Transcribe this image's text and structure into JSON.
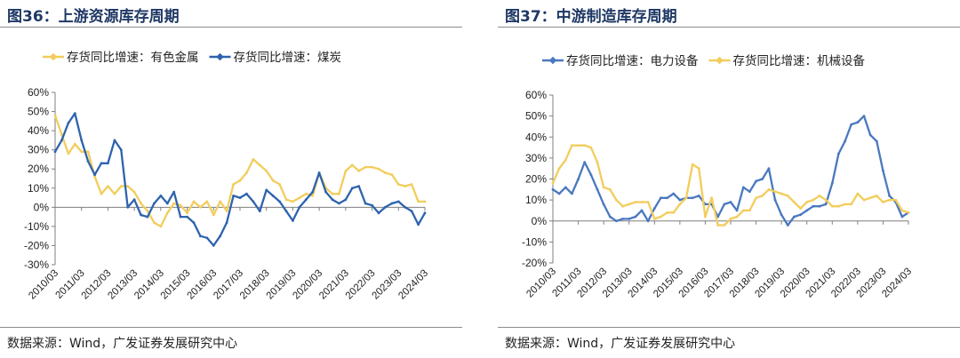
{
  "charts": [
    {
      "title": "图36：上游资源库存周期",
      "source": "数据来源：Wind，广发证券发展研究中心",
      "chart_data": {
        "type": "line",
        "ylim": [
          -30,
          60
        ],
        "yticks": [
          -30,
          -20,
          -10,
          0,
          10,
          20,
          30,
          40,
          50,
          60
        ],
        "ytick_labels": [
          "-30%",
          "-20%",
          "-10%",
          "0%",
          "10%",
          "20%",
          "30%",
          "40%",
          "50%",
          "60%"
        ],
        "xticks": [
          "2010/03",
          "2011/03",
          "2012/03",
          "2013/03",
          "2014/03",
          "2015/03",
          "2016/03",
          "2017/03",
          "2018/03",
          "2019/03",
          "2020/03",
          "2021/03",
          "2022/03",
          "2023/03",
          "2024/03"
        ],
        "legend_position": "top",
        "grid": false,
        "series": [
          {
            "name": "存货同比增速：有色金属",
            "color": "#f2cd5c",
            "x": [
              "2010/03",
              "2010/06",
              "2010/09",
              "2010/12",
              "2011/03",
              "2011/06",
              "2011/09",
              "2011/12",
              "2012/03",
              "2012/06",
              "2012/09",
              "2012/12",
              "2013/03",
              "2013/06",
              "2013/09",
              "2013/12",
              "2014/03",
              "2014/06",
              "2014/09",
              "2014/12",
              "2015/03",
              "2015/06",
              "2015/09",
              "2015/12",
              "2016/03",
              "2016/06",
              "2016/09",
              "2016/12",
              "2017/03",
              "2017/06",
              "2017/09",
              "2017/12",
              "2018/03",
              "2018/06",
              "2018/09",
              "2018/12",
              "2019/03",
              "2019/06",
              "2019/09",
              "2019/12",
              "2020/03",
              "2020/06",
              "2020/09",
              "2020/12",
              "2021/03",
              "2021/06",
              "2021/09",
              "2021/12",
              "2022/03",
              "2022/06",
              "2022/09",
              "2022/12",
              "2023/03",
              "2023/06",
              "2023/09",
              "2023/12",
              "2024/03"
            ],
            "values": [
              48,
              38,
              28,
              33,
              29,
              29,
              16,
              7,
              11,
              7,
              11,
              11,
              8,
              2,
              -2,
              -8,
              -10,
              -3,
              2,
              1,
              -3,
              3,
              0,
              3,
              -4,
              3,
              -2,
              12,
              14,
              18,
              25,
              22,
              19,
              14,
              12,
              4,
              3,
              5,
              7,
              6,
              18,
              10,
              7,
              7,
              19,
              22,
              19,
              21,
              21,
              20,
              18,
              17,
              12,
              11,
              12,
              3,
              3
            ]
          },
          {
            "name": "存货同比增速：煤炭",
            "color": "#2e63ae",
            "x": [
              "2010/03",
              "2010/06",
              "2010/09",
              "2010/12",
              "2011/03",
              "2011/06",
              "2011/09",
              "2011/12",
              "2012/03",
              "2012/06",
              "2012/09",
              "2012/12",
              "2013/03",
              "2013/06",
              "2013/09",
              "2013/12",
              "2014/03",
              "2014/06",
              "2014/09",
              "2014/12",
              "2015/03",
              "2015/06",
              "2015/09",
              "2015/12",
              "2016/03",
              "2016/06",
              "2016/09",
              "2016/12",
              "2017/03",
              "2017/06",
              "2017/09",
              "2017/12",
              "2018/03",
              "2018/06",
              "2018/09",
              "2018/12",
              "2019/03",
              "2019/06",
              "2019/09",
              "2019/12",
              "2020/03",
              "2020/06",
              "2020/09",
              "2020/12",
              "2021/03",
              "2021/06",
              "2021/09",
              "2021/12",
              "2022/03",
              "2022/06",
              "2022/09",
              "2022/12",
              "2023/03",
              "2023/06",
              "2023/09",
              "2023/12",
              "2024/03"
            ],
            "values": [
              29,
              35,
              44,
              49,
              35,
              24,
              17,
              23,
              23,
              35,
              30,
              0,
              4,
              -4,
              -5,
              2,
              6,
              2,
              8,
              -5,
              -5,
              -8,
              -15,
              -16,
              -20,
              -15,
              -8,
              6,
              5,
              7,
              3,
              -2,
              9,
              6,
              3,
              -2,
              -7,
              0,
              4,
              8,
              18,
              8,
              4,
              2,
              4,
              10,
              11,
              2,
              1,
              -3,
              0,
              2,
              3,
              0,
              -2,
              -9,
              -3
            ]
          }
        ]
      }
    },
    {
      "title": "图37：中游制造库存周期",
      "source": "数据来源：Wind，广发证券发展研究中心",
      "chart_data": {
        "type": "line",
        "ylim": [
          -20,
          60
        ],
        "yticks": [
          -20,
          -10,
          0,
          10,
          20,
          30,
          40,
          50,
          60
        ],
        "ytick_labels": [
          "-20%",
          "-10%",
          "0%",
          "10%",
          "20%",
          "30%",
          "40%",
          "50%",
          "60%"
        ],
        "xticks": [
          "2010/03",
          "2011/03",
          "2012/03",
          "2013/03",
          "2014/03",
          "2015/03",
          "2016/03",
          "2017/03",
          "2018/03",
          "2019/03",
          "2020/03",
          "2021/03",
          "2022/03",
          "2023/03",
          "2024/03"
        ],
        "legend_position": "top",
        "grid": false,
        "series": [
          {
            "name": "存货同比增速：电力设备",
            "color": "#4a78c0",
            "x": [
              "2010/03",
              "2010/06",
              "2010/09",
              "2010/12",
              "2011/03",
              "2011/06",
              "2011/09",
              "2011/12",
              "2012/03",
              "2012/06",
              "2012/09",
              "2012/12",
              "2013/03",
              "2013/06",
              "2013/09",
              "2013/12",
              "2014/03",
              "2014/06",
              "2014/09",
              "2014/12",
              "2015/03",
              "2015/06",
              "2015/09",
              "2015/12",
              "2016/03",
              "2016/06",
              "2016/09",
              "2016/12",
              "2017/03",
              "2017/06",
              "2017/09",
              "2017/12",
              "2018/03",
              "2018/06",
              "2018/09",
              "2018/12",
              "2019/03",
              "2019/06",
              "2019/09",
              "2019/12",
              "2020/03",
              "2020/06",
              "2020/09",
              "2020/12",
              "2021/03",
              "2021/06",
              "2021/09",
              "2021/12",
              "2022/03",
              "2022/06",
              "2022/09",
              "2022/12",
              "2023/03",
              "2023/06",
              "2023/09",
              "2023/12",
              "2024/03"
            ],
            "values": [
              15,
              13,
              16,
              13,
              20,
              28,
              22,
              15,
              8,
              2,
              0,
              1,
              1,
              2,
              5,
              0,
              6,
              11,
              11,
              13,
              10,
              11,
              11,
              12,
              8,
              8,
              2,
              8,
              9,
              5,
              16,
              14,
              19,
              20,
              25,
              10,
              3,
              -2,
              2,
              3,
              5,
              7,
              7,
              8,
              18,
              32,
              38,
              46,
              47,
              50,
              41,
              38,
              24,
              12,
              9,
              2,
              4
            ]
          },
          {
            "name": "存货同比增速：机械设备",
            "color": "#f2cd5c",
            "x": [
              "2010/03",
              "2010/06",
              "2010/09",
              "2010/12",
              "2011/03",
              "2011/06",
              "2011/09",
              "2011/12",
              "2012/03",
              "2012/06",
              "2012/09",
              "2012/12",
              "2013/03",
              "2013/06",
              "2013/09",
              "2013/12",
              "2014/03",
              "2014/06",
              "2014/09",
              "2014/12",
              "2015/03",
              "2015/06",
              "2015/09",
              "2015/12",
              "2016/03",
              "2016/06",
              "2016/09",
              "2016/12",
              "2017/03",
              "2017/06",
              "2017/09",
              "2017/12",
              "2018/03",
              "2018/06",
              "2018/09",
              "2018/12",
              "2019/03",
              "2019/06",
              "2019/09",
              "2019/12",
              "2020/03",
              "2020/06",
              "2020/09",
              "2020/12",
              "2021/03",
              "2021/06",
              "2021/09",
              "2021/12",
              "2022/03",
              "2022/06",
              "2022/09",
              "2022/12",
              "2023/03",
              "2023/06",
              "2023/09",
              "2023/12",
              "2024/03"
            ],
            "values": [
              18,
              25,
              29,
              36,
              36,
              36,
              35,
              28,
              16,
              15,
              10,
              7,
              8,
              9,
              9,
              9,
              1,
              2,
              4,
              4,
              8,
              11,
              27,
              25,
              2,
              11,
              -2,
              -2,
              1,
              2,
              5,
              5,
              11,
              12,
              15,
              14,
              13,
              12,
              9,
              6,
              9,
              10,
              12,
              10,
              7,
              7,
              8,
              8,
              13,
              10,
              11,
              12,
              9,
              10,
              10,
              5,
              4
            ]
          }
        ]
      }
    }
  ]
}
